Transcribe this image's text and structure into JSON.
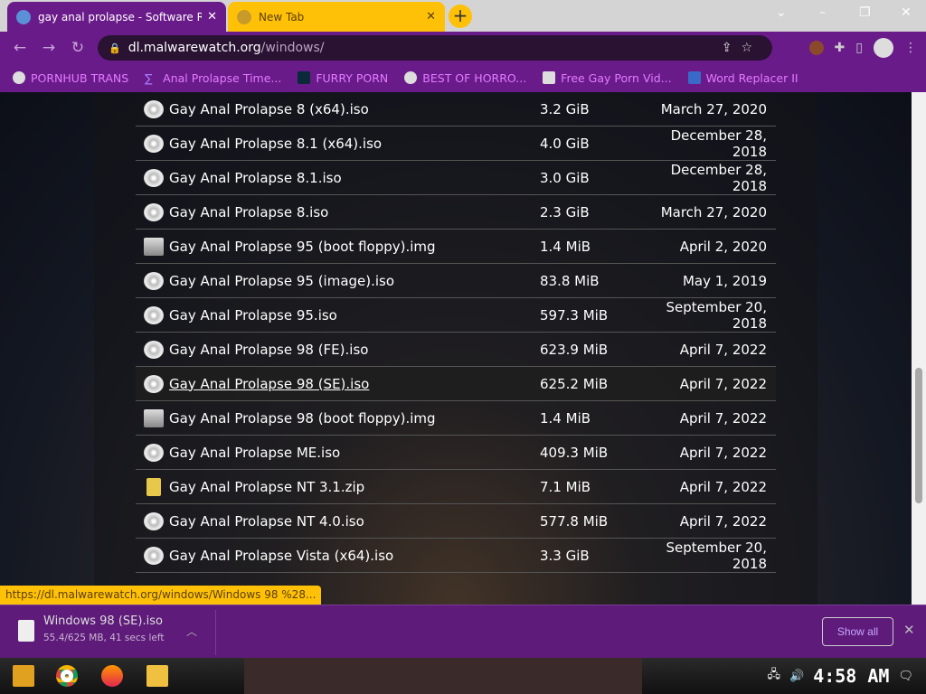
{
  "tabs": [
    {
      "title": "gay anal prolapse - Software R",
      "active": true
    },
    {
      "title": "New Tab",
      "active": false
    }
  ],
  "address": {
    "host": "dl.malwarewatch.org",
    "path": "/windows/"
  },
  "bookmarks": [
    "PORNHUB TRANS",
    "Anal Prolapse Time...",
    "FURRY PORN",
    "BEST OF HORRO...",
    "Free Gay Porn Vid...",
    "Word Replacer II"
  ],
  "files": [
    {
      "name": "Gay Anal Prolapse 8 (x64).iso",
      "size": "3.2 GiB",
      "date": "March 27, 2020",
      "icon": "cd-icon"
    },
    {
      "name": "Gay Anal Prolapse 8.1 (x64).iso",
      "size": "4.0 GiB",
      "date": "December 28, 2018",
      "icon": "cd-icon"
    },
    {
      "name": "Gay Anal Prolapse 8.1.iso",
      "size": "3.0 GiB",
      "date": "December 28, 2018",
      "icon": "cd-icon"
    },
    {
      "name": "Gay Anal Prolapse 8.iso",
      "size": "2.3 GiB",
      "date": "March 27, 2020",
      "icon": "cd-icon"
    },
    {
      "name": "Gay Anal Prolapse 95 (boot floppy).img",
      "size": "1.4 MiB",
      "date": "April 2, 2020",
      "icon": "floppy-icon"
    },
    {
      "name": "Gay Anal Prolapse 95 (image).iso",
      "size": "83.8 MiB",
      "date": "May 1, 2019",
      "icon": "cd-icon"
    },
    {
      "name": "Gay Anal Prolapse 95.iso",
      "size": "597.3 MiB",
      "date": "September 20, 2018",
      "icon": "cd-icon"
    },
    {
      "name": "Gay Anal Prolapse 98 (FE).iso",
      "size": "623.9 MiB",
      "date": "April 7, 2022",
      "icon": "cd-icon"
    },
    {
      "name": "Gay Anal Prolapse 98 (SE).iso",
      "size": "625.2 MiB",
      "date": "April 7, 2022",
      "icon": "cd-icon",
      "hover": true
    },
    {
      "name": "Gay Anal Prolapse 98 (boot floppy).img",
      "size": "1.4 MiB",
      "date": "April 7, 2022",
      "icon": "floppy-icon"
    },
    {
      "name": "Gay Anal Prolapse ME.iso",
      "size": "409.3 MiB",
      "date": "April 7, 2022",
      "icon": "cd-icon"
    },
    {
      "name": "Gay Anal Prolapse NT 3.1.zip",
      "size": "7.1 MiB",
      "date": "April 7, 2022",
      "icon": "zip-icon"
    },
    {
      "name": "Gay Anal Prolapse NT 4.0.iso",
      "size": "577.8 MiB",
      "date": "April 7, 2022",
      "icon": "cd-icon"
    },
    {
      "name": "Gay Anal Prolapse Vista (x64).iso",
      "size": "3.3 GiB",
      "date": "September 20, 2018",
      "icon": "cd-icon"
    }
  ],
  "status_url": "https://dl.malwarewatch.org/windows/Windows 98 %28...",
  "download": {
    "name": "Windows 98 (SE).iso",
    "progress": "55.4/625 MB, 41 secs left",
    "show_all": "Show all"
  },
  "clock": "4:58 AM"
}
